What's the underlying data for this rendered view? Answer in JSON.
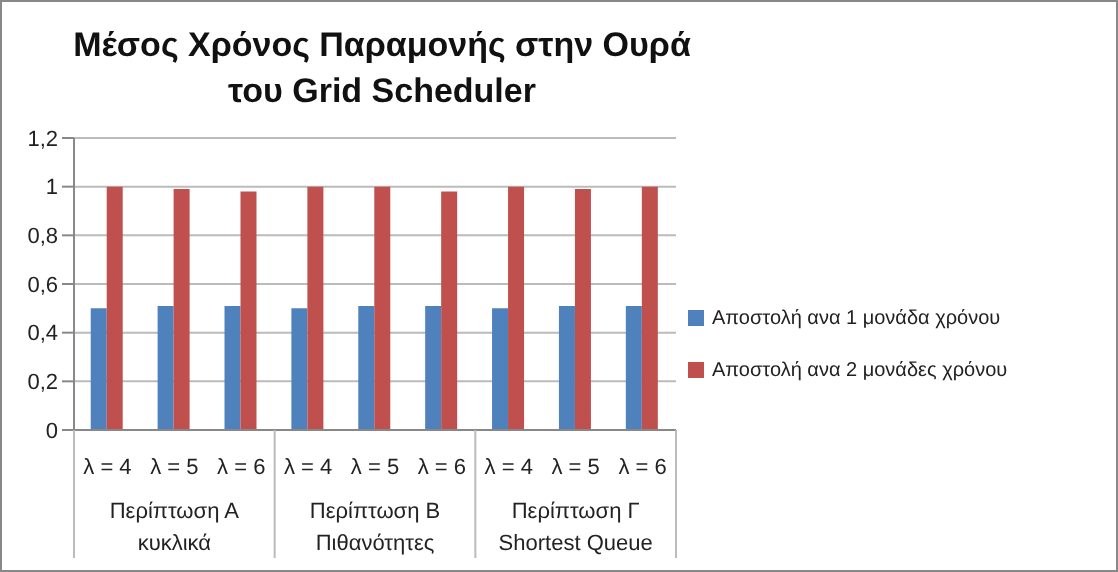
{
  "chart_data": {
    "type": "bar",
    "title": "Μέσος Χρόνος Παραμονής στην Ουρά\nτου Grid Scheduler",
    "categories": [
      "λ = 4",
      "λ = 5",
      "λ = 6",
      "λ = 4",
      "λ = 5",
      "λ = 6",
      "λ = 4",
      "λ = 5",
      "λ = 6"
    ],
    "annotations": [
      "Περίπτωση Α\nκυκλικά",
      "Περίπτωση Β\nΠιθανότητες",
      "Περίπτωση Γ\nShortest Queue"
    ],
    "series": [
      {
        "name": "Αποστολή ανα 1 μονάδα χρόνου",
        "color": "#4f81bd",
        "values": [
          0.5,
          0.51,
          0.51,
          0.5,
          0.51,
          0.51,
          0.5,
          0.51,
          0.51
        ]
      },
      {
        "name": "Αποστολή ανα 2 μονάδες χρόνου",
        "color": "#c0504d",
        "values": [
          1,
          0.99,
          0.98,
          1,
          1,
          0.98,
          1,
          0.99,
          1
        ]
      }
    ],
    "ylim": [
      0,
      1.2
    ],
    "yticks": [
      0,
      {
        "value": 0.2,
        "label": "0,2"
      },
      {
        "value": 0.4,
        "label": "0,4"
      },
      {
        "value": 0.6,
        "label": "0,6"
      },
      {
        "value": 0.8,
        "label": "0,8"
      },
      1,
      {
        "value": 1.2,
        "label": "1,2"
      }
    ],
    "grid": "y",
    "legend": "right"
  }
}
